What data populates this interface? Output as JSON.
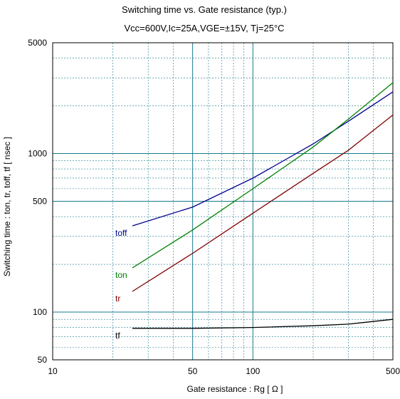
{
  "chart_data": {
    "type": "line",
    "title": "Switching time  vs.  Gate resistance  (typ.)",
    "subtitle": "Vcc=600V,Ic=25A,VGE=±15V, Tj=25°C",
    "xlabel": "Gate resistance  :  Rg  [    Ω ]",
    "ylabel": "Switching time  :  ton, tr, toff, tf  [ nsec ]",
    "xscale": "log",
    "yscale": "log",
    "xlim": [
      10,
      500
    ],
    "ylim": [
      50,
      5000
    ],
    "x_ticks": [
      10,
      50,
      100,
      500
    ],
    "x_tick_labels": [
      "10",
      "50",
      "100",
      "500"
    ],
    "y_ticks": [
      50,
      100,
      500,
      1000,
      5000
    ],
    "y_tick_labels": [
      "50",
      "100",
      "500",
      "1000",
      "5000"
    ],
    "grid": true,
    "series": [
      {
        "name": "toff",
        "color": "#00008b",
        "x": [
          25,
          50,
          100,
          200,
          300,
          500
        ],
        "y": [
          350,
          460,
          700,
          1150,
          1600,
          2450
        ]
      },
      {
        "name": "ton",
        "color": "#008000",
        "x": [
          25,
          50,
          100,
          200,
          300,
          500
        ],
        "y": [
          190,
          330,
          600,
          1100,
          1650,
          2800
        ]
      },
      {
        "name": "tr",
        "color": "#800000",
        "x": [
          25,
          50,
          100,
          200,
          300,
          500
        ],
        "y": [
          135,
          235,
          420,
          750,
          1050,
          1750
        ]
      },
      {
        "name": "tf",
        "color": "#000000",
        "x": [
          25,
          50,
          100,
          200,
          300,
          500
        ],
        "y": [
          79,
          79,
          80,
          82,
          84,
          90
        ]
      }
    ]
  }
}
